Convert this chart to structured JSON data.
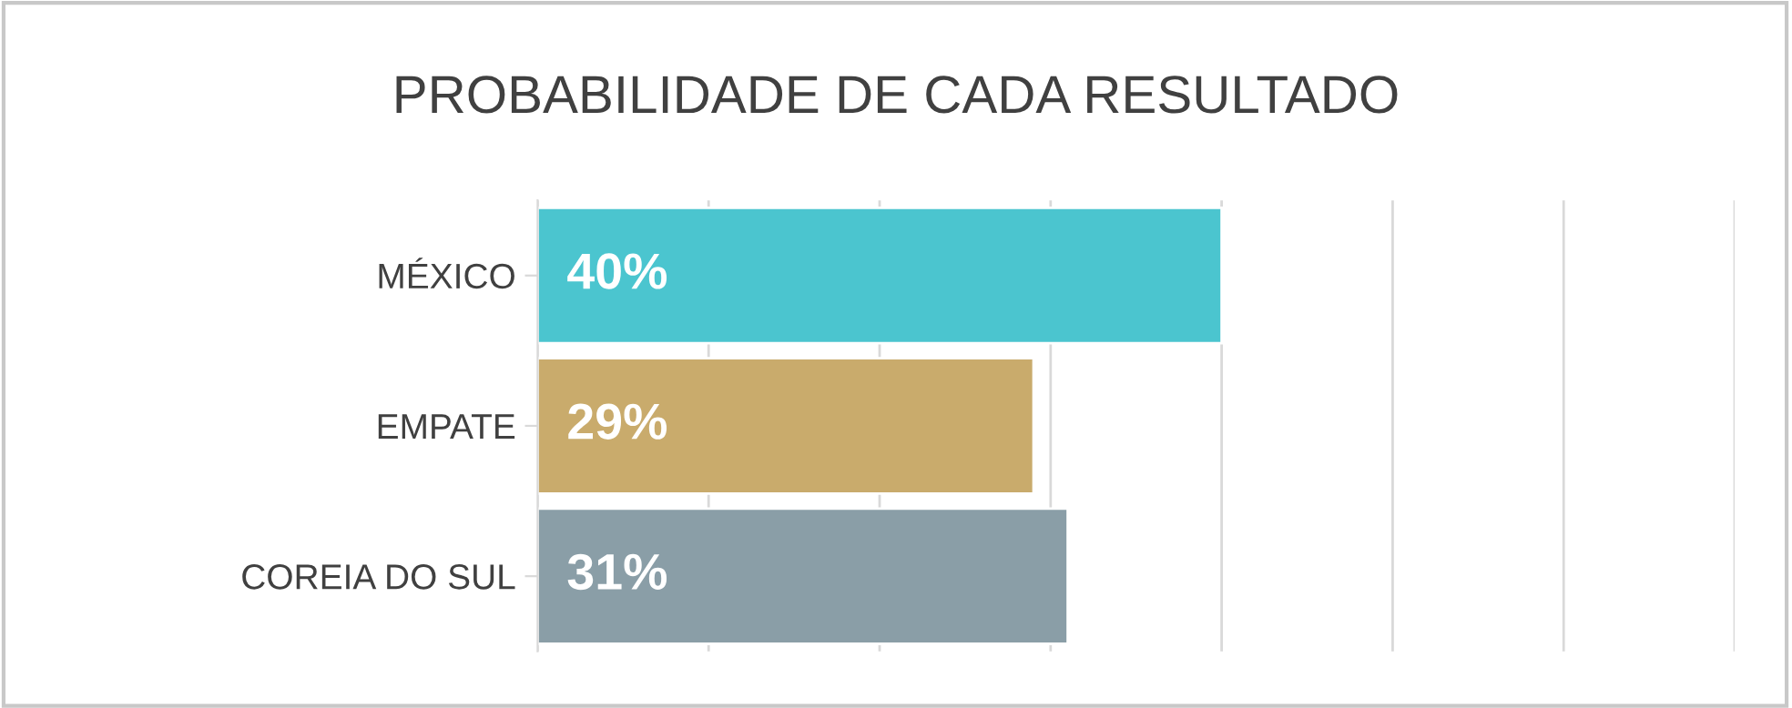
{
  "chart_data": {
    "type": "bar",
    "orientation": "horizontal",
    "title": "PROBABILIDADE DE CADA RESULTADO",
    "categories": [
      "MÉXICO",
      "EMPATE",
      "COREIA DO SUL"
    ],
    "values": [
      40,
      29,
      31
    ],
    "colors": [
      "#4bc5cf",
      "#c9ab6c",
      "#8a9ea7"
    ],
    "value_labels": [
      "40%",
      "29%",
      "31%"
    ],
    "xlim": [
      0,
      70
    ],
    "xticks": [
      {
        "value": 0,
        "label": null
      },
      {
        "value": 10,
        "label": null
      },
      {
        "value": 20,
        "label": null
      },
      {
        "value": 30,
        "label": null
      },
      {
        "value": 40,
        "label": null
      },
      {
        "value": 50,
        "label": null
      },
      {
        "value": 60,
        "label": null
      },
      {
        "value": 70,
        "label": null
      }
    ],
    "grid": "x",
    "tick_labels": "y",
    "legend": false
  }
}
